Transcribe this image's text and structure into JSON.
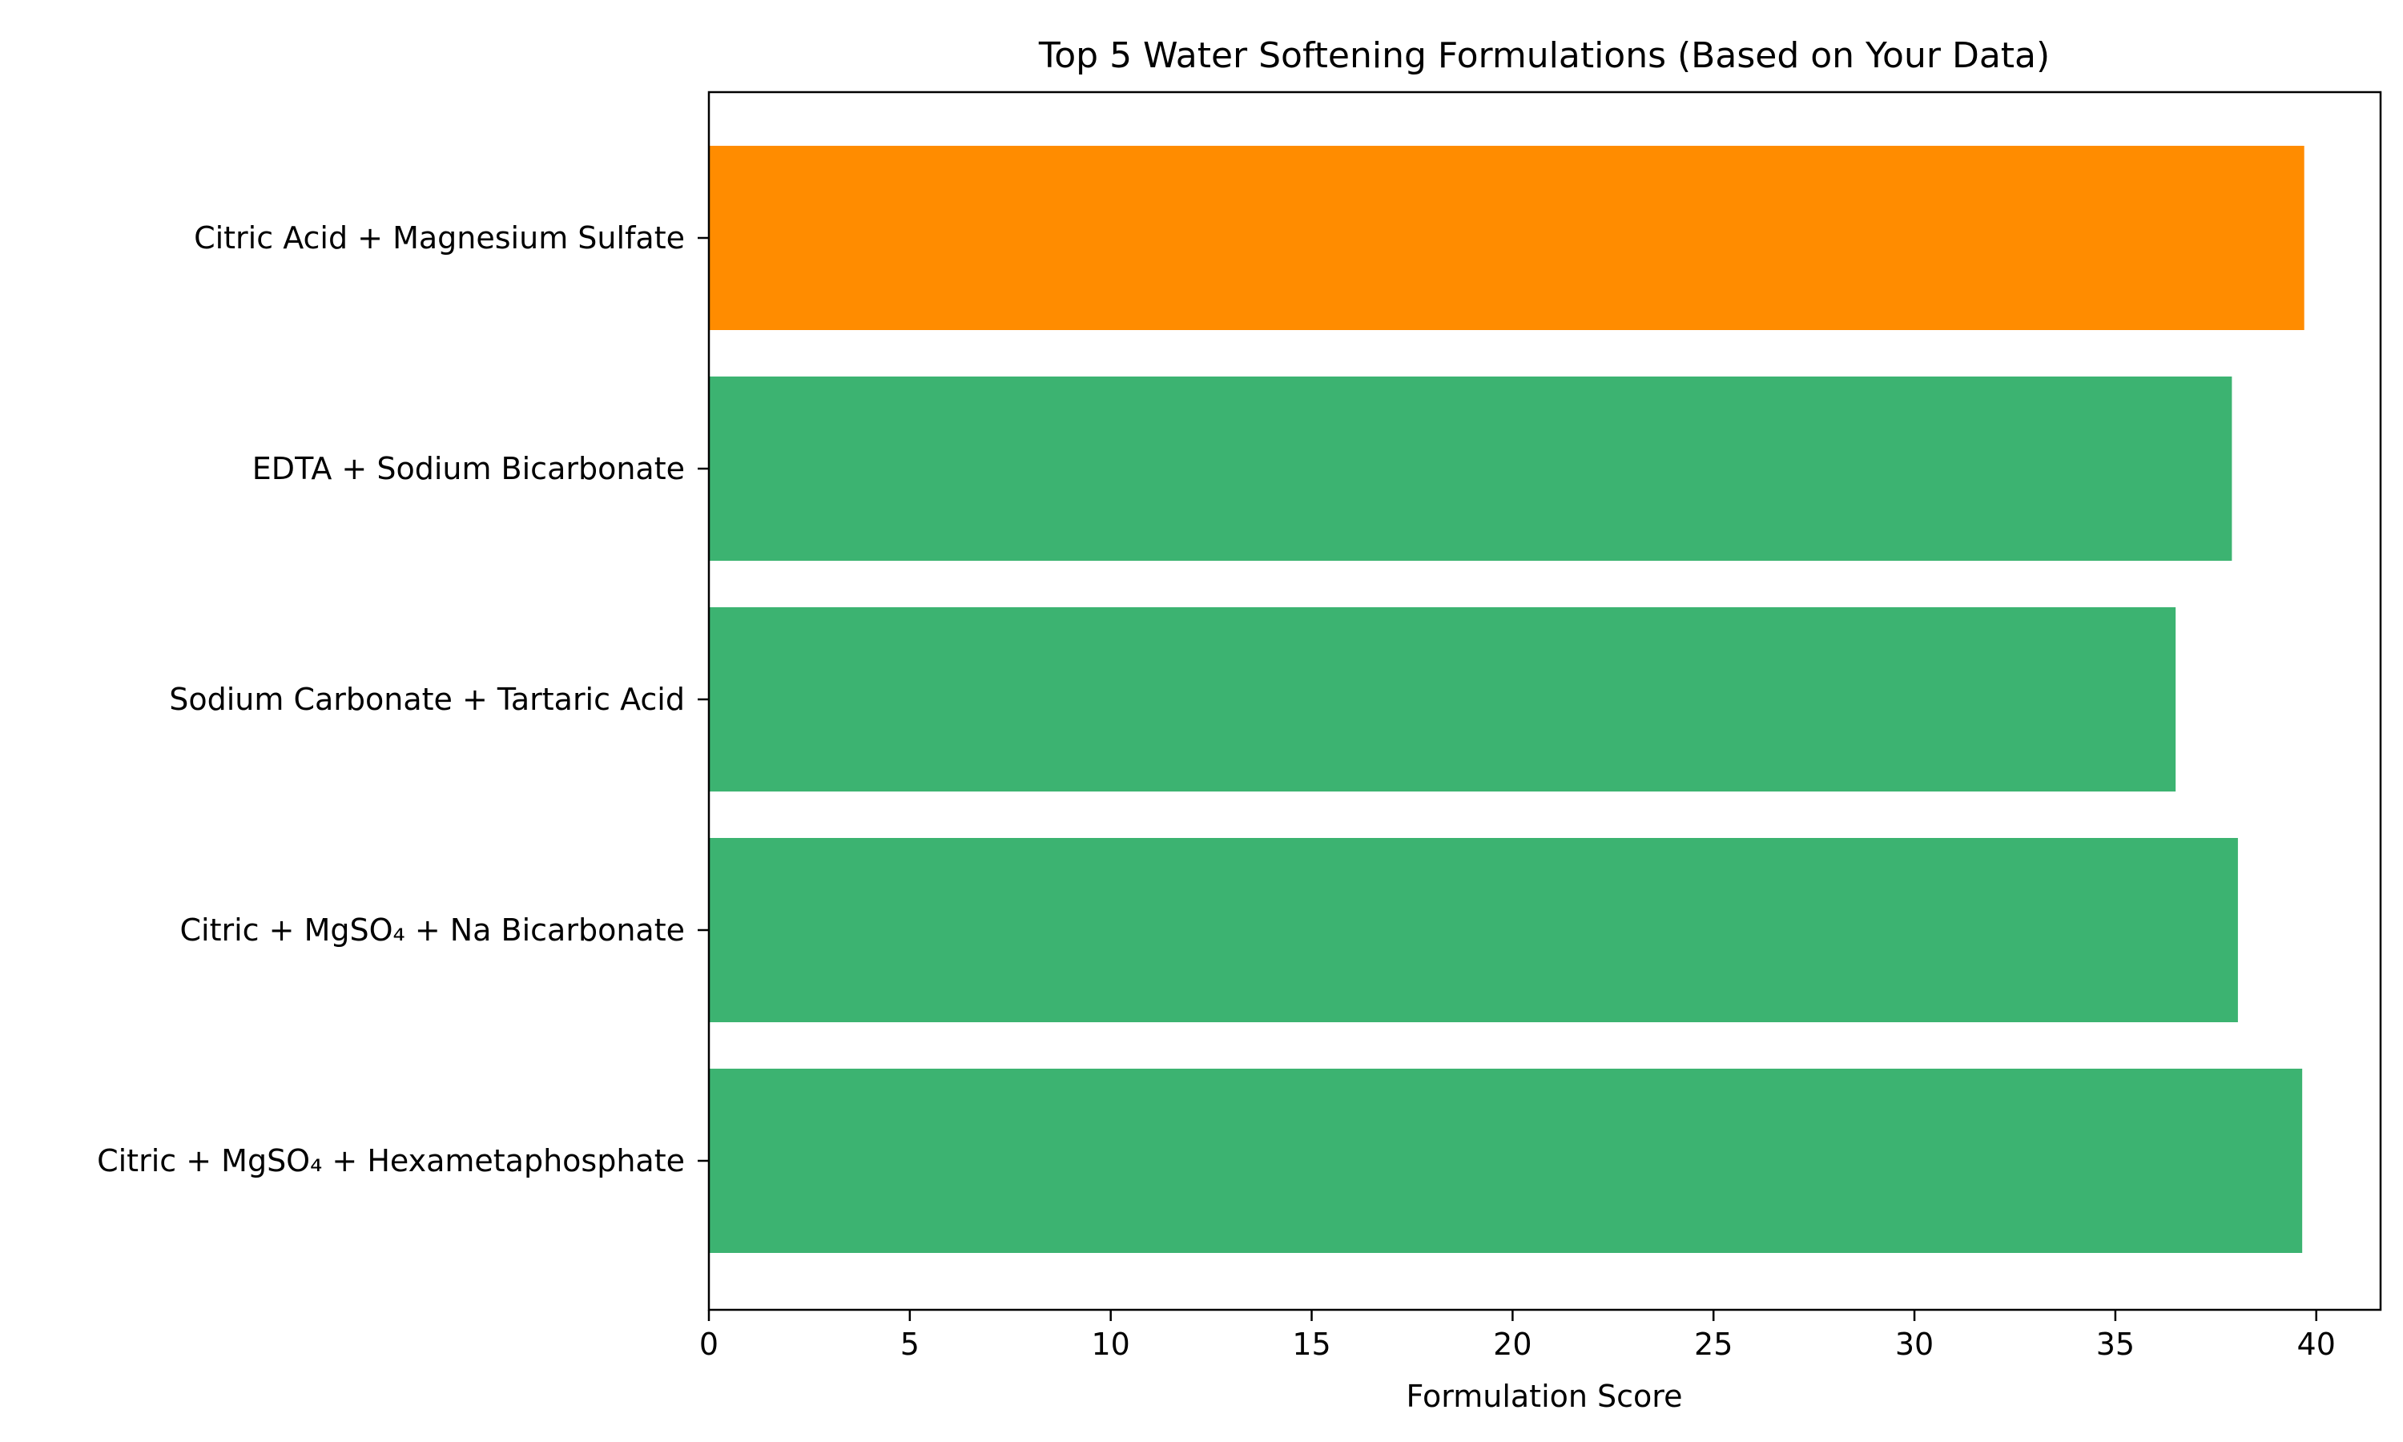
{
  "chart_data": {
    "type": "bar",
    "orientation": "horizontal",
    "title": "Top 5 Water Softening Formulations (Based on Your Data)",
    "xlabel": "Formulation Score",
    "ylabel": "",
    "xlim": [
      0,
      41.6
    ],
    "xticks": [
      0,
      5,
      10,
      15,
      20,
      25,
      30,
      35,
      40
    ],
    "categories": [
      "Citric Acid + Magnesium Sulfate",
      "EDTA + Sodium Bicarbonate",
      "Sodium Carbonate + Tartaric Acid",
      "Citric + MgSO₄ + Na Bicarbonate",
      "Citric + MgSO₄ + Hexametaphosphate"
    ],
    "values": [
      39.7,
      37.9,
      36.5,
      38.05,
      39.65
    ],
    "highlight_index": 0,
    "colors": {
      "highlight": "#ff8c00",
      "default": "#3cb371"
    },
    "grid": false,
    "legend": "none"
  }
}
